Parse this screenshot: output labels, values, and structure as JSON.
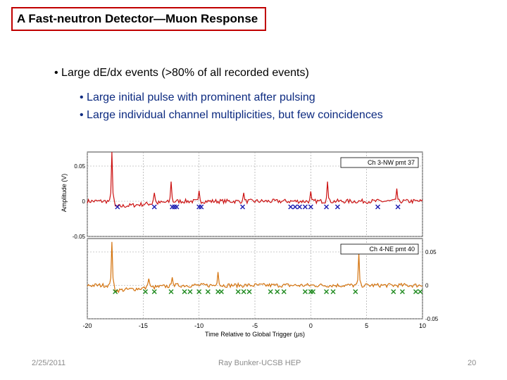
{
  "slide": {
    "title": "A Fast-neutron Detector—Muon Response",
    "bullets": [
      "• Large dE/dx events (>80% of all recorded events)",
      "• Large initial pulse with prominent after pulsing",
      "• Large individual channel multiplicities, but few coincidences"
    ],
    "footer": {
      "date": "2/25/2011",
      "center": "Ray Bunker-UCSB HEP",
      "page": "20"
    }
  },
  "chart_data": {
    "type": "line",
    "xlabel": "Time Relative to Global Trigger (μs)",
    "ylabel": "Amplitude (V)",
    "xlim": [
      -20,
      10
    ],
    "x_ticks": [
      "-20",
      "-15",
      "-10",
      "-5",
      "0",
      "5",
      "10"
    ],
    "grid": true,
    "panels": [
      {
        "legend": "Ch 3-NW pmt 37",
        "color": "#cc1111",
        "marker_color": "#1a1ab0",
        "ylim": [
          -0.05,
          0.07
        ],
        "y_ticks_left": [
          "0.05",
          "0",
          "-0.05"
        ],
        "y_ticks_right": [],
        "baseline": 0.0,
        "spikes": [
          {
            "x": -17.8,
            "y": 0.07
          },
          {
            "x": -14.0,
            "y": 0.012
          },
          {
            "x": -12.5,
            "y": 0.028
          },
          {
            "x": -10.0,
            "y": 0.015
          },
          {
            "x": -6.0,
            "y": 0.012
          },
          {
            "x": 0.0,
            "y": 0.014
          },
          {
            "x": 1.5,
            "y": 0.028
          },
          {
            "x": 7.7,
            "y": 0.018
          }
        ],
        "markers_x": [
          -17.3,
          -14.0,
          -12.4,
          -12.2,
          -12.0,
          -10.0,
          -9.8,
          -6.1,
          -1.8,
          -1.4,
          -1.0,
          -0.5,
          0.0,
          1.4,
          2.4,
          6.0,
          7.8
        ]
      },
      {
        "legend": "Ch 4-NE pmt 40",
        "color": "#d4730e",
        "marker_color": "#1e8a1e",
        "ylim": [
          -0.05,
          0.07
        ],
        "y_ticks_left": [],
        "y_ticks_right": [
          "0.05",
          "0",
          "-0.05"
        ],
        "baseline": 0.0,
        "spikes": [
          {
            "x": -17.8,
            "y": 0.065
          },
          {
            "x": -14.5,
            "y": 0.01
          },
          {
            "x": -12.4,
            "y": 0.012
          },
          {
            "x": -8.3,
            "y": 0.02
          },
          {
            "x": 4.3,
            "y": 0.048
          }
        ],
        "markers_x": [
          -17.5,
          -14.8,
          -14.0,
          -12.5,
          -11.3,
          -10.8,
          -10.0,
          -9.2,
          -8.3,
          -8.0,
          -6.5,
          -6.0,
          -5.5,
          -3.6,
          -3.0,
          -2.4,
          -0.5,
          0.0,
          0.2,
          1.4,
          2.0,
          4.0,
          7.4,
          8.2,
          9.4,
          9.8
        ]
      }
    ]
  }
}
